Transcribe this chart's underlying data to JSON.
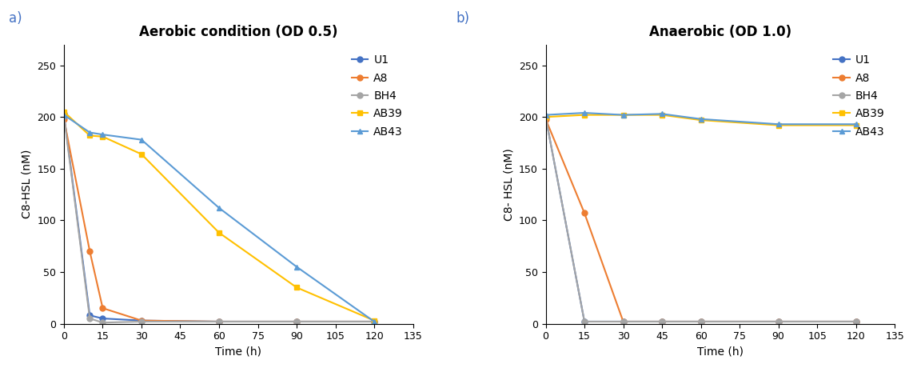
{
  "panel_a": {
    "title": "Aerobic condition (OD 0.5)",
    "xlabel": "Time (h)",
    "ylabel": "C8-HSL (nM)",
    "xlim": [
      0,
      135
    ],
    "ylim": [
      0,
      270
    ],
    "yticks": [
      0,
      50,
      100,
      150,
      200,
      250
    ],
    "xticks": [
      0,
      15,
      30,
      45,
      60,
      75,
      90,
      105,
      120,
      135
    ],
    "series": {
      "U1": {
        "x": [
          0,
          10,
          15,
          30,
          60,
          90,
          120
        ],
        "y": [
          203,
          8,
          5,
          3,
          2,
          2,
          2
        ],
        "color": "#4472C4",
        "marker": "o"
      },
      "A8": {
        "x": [
          0,
          10,
          15,
          30,
          60,
          90,
          120
        ],
        "y": [
          198,
          70,
          15,
          3,
          2,
          2,
          2
        ],
        "color": "#ED7D31",
        "marker": "o"
      },
      "BH4": {
        "x": [
          0,
          10,
          15,
          30,
          60,
          90,
          120
        ],
        "y": [
          201,
          5,
          1,
          2,
          2,
          2,
          2
        ],
        "color": "#A5A5A5",
        "marker": "o"
      },
      "AB39": {
        "x": [
          0,
          10,
          15,
          30,
          60,
          90,
          120
        ],
        "y": [
          205,
          182,
          181,
          164,
          88,
          35,
          3
        ],
        "color": "#FFC000",
        "marker": "s"
      },
      "AB43": {
        "x": [
          0,
          10,
          15,
          30,
          60,
          90,
          120
        ],
        "y": [
          202,
          185,
          183,
          178,
          112,
          55,
          2
        ],
        "color": "#5B9BD5",
        "marker": "^"
      }
    }
  },
  "panel_b": {
    "title": "Anaerobic (OD 1.0)",
    "xlabel": "Time (h)",
    "ylabel": "C8- HSL (nM)",
    "xlim": [
      0,
      135
    ],
    "ylim": [
      0,
      270
    ],
    "yticks": [
      0,
      50,
      100,
      150,
      200,
      250
    ],
    "xticks": [
      0,
      15,
      30,
      45,
      60,
      75,
      90,
      105,
      120,
      135
    ],
    "series": {
      "U1": {
        "x": [
          0,
          15,
          30,
          45,
          60,
          90,
          120
        ],
        "y": [
          200,
          2,
          2,
          2,
          2,
          2,
          2
        ],
        "color": "#4472C4",
        "marker": "o"
      },
      "A8": {
        "x": [
          0,
          15,
          30,
          45,
          60,
          90,
          120
        ],
        "y": [
          198,
          107,
          2,
          2,
          2,
          2,
          2
        ],
        "color": "#ED7D31",
        "marker": "o"
      },
      "BH4": {
        "x": [
          0,
          15,
          30,
          45,
          60,
          90,
          120
        ],
        "y": [
          200,
          2,
          2,
          2,
          2,
          2,
          2
        ],
        "color": "#A5A5A5",
        "marker": "o"
      },
      "AB39": {
        "x": [
          0,
          15,
          30,
          45,
          60,
          90,
          120
        ],
        "y": [
          200,
          202,
          202,
          202,
          197,
          192,
          192
        ],
        "color": "#FFC000",
        "marker": "s"
      },
      "AB43": {
        "x": [
          0,
          15,
          30,
          45,
          60,
          90,
          120
        ],
        "y": [
          202,
          204,
          202,
          203,
          198,
          193,
          193
        ],
        "color": "#5B9BD5",
        "marker": "^"
      }
    }
  },
  "label_a": "a)",
  "label_b": "b)",
  "bg_color": "#FFFFFF",
  "title_fontsize": 12,
  "axis_label_fontsize": 10,
  "tick_fontsize": 9,
  "legend_fontsize": 10,
  "marker_size": 5,
  "line_width": 1.5
}
